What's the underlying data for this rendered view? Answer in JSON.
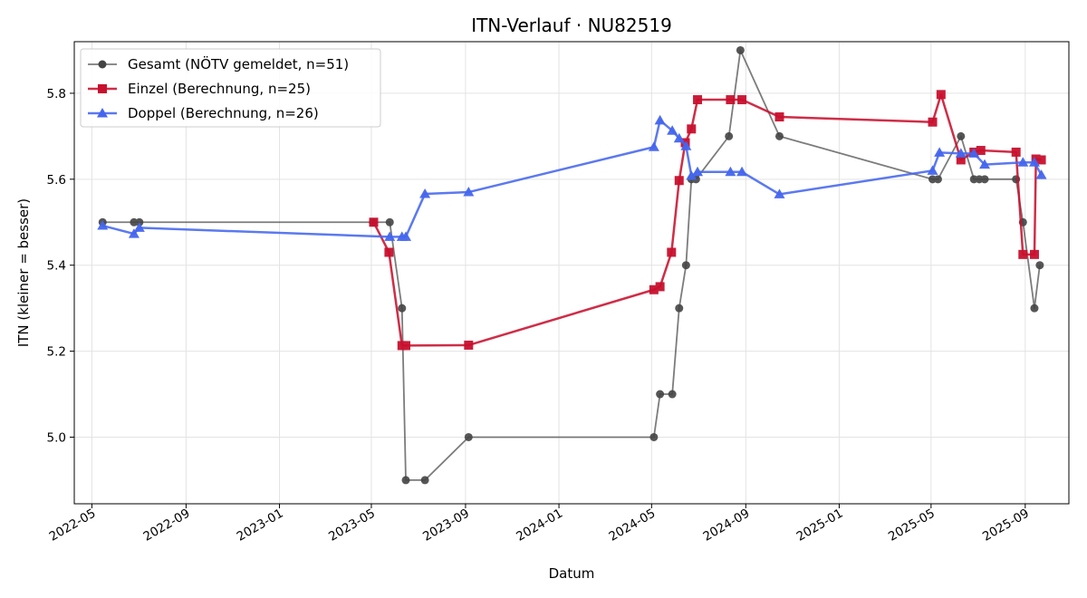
{
  "chart_data": {
    "type": "line",
    "title": "ITN-Verlauf · NU82519",
    "xlabel": "Datum",
    "ylabel": "ITN  (kleiner = besser)",
    "x_type": "date",
    "xlim": [
      "2022-04-08",
      "2025-10-28"
    ],
    "ylim": [
      4.845,
      5.92
    ],
    "x_ticks": [
      "2022-05-01",
      "2022-09-01",
      "2023-01-01",
      "2023-05-01",
      "2023-09-01",
      "2024-01-01",
      "2024-05-01",
      "2024-09-01",
      "2025-01-01",
      "2025-05-01",
      "2025-09-01"
    ],
    "x_tick_labels": [
      "2022-05",
      "2022-09",
      "2023-01",
      "2023-05",
      "2023-09",
      "2024-01",
      "2024-05",
      "2024-09",
      "2025-01",
      "2025-05",
      "2025-09"
    ],
    "y_ticks": [
      5.0,
      5.2,
      5.4,
      5.6,
      5.8
    ],
    "y_tick_labels": [
      "5.0",
      "5.2",
      "5.4",
      "5.6",
      "5.8"
    ],
    "grid": true,
    "legend_position": "top-left",
    "series": [
      {
        "name": "Gesamt (NÖTV gemeldet, n=51)",
        "color": "#444444",
        "marker": "circle",
        "points": [
          [
            "2022-05-15",
            5.5
          ],
          [
            "2022-06-25",
            5.5
          ],
          [
            "2022-07-02",
            5.5
          ],
          [
            "2023-05-03",
            5.5
          ],
          [
            "2023-05-25",
            5.5
          ],
          [
            "2023-06-10",
            5.3
          ],
          [
            "2023-06-15",
            4.9
          ],
          [
            "2023-07-10",
            4.9
          ],
          [
            "2023-09-05",
            5.0
          ],
          [
            "2024-05-04",
            5.0
          ],
          [
            "2024-05-12",
            5.1
          ],
          [
            "2024-05-28",
            5.1
          ],
          [
            "2024-06-06",
            5.3
          ],
          [
            "2024-06-15",
            5.4
          ],
          [
            "2024-06-22",
            5.6
          ],
          [
            "2024-06-28",
            5.6
          ],
          [
            "2024-08-10",
            5.7
          ],
          [
            "2024-08-25",
            5.9
          ],
          [
            "2024-10-15",
            5.7
          ],
          [
            "2025-05-03",
            5.6
          ],
          [
            "2025-05-10",
            5.6
          ],
          [
            "2025-06-09",
            5.7
          ],
          [
            "2025-06-26",
            5.6
          ],
          [
            "2025-07-03",
            5.6
          ],
          [
            "2025-07-10",
            5.6
          ],
          [
            "2025-08-20",
            5.6
          ],
          [
            "2025-08-29",
            5.5
          ],
          [
            "2025-09-13",
            5.3
          ],
          [
            "2025-09-20",
            5.4
          ]
        ]
      },
      {
        "name": "Einzel (Berechnung, n=25)",
        "color": "#c8102e",
        "marker": "square",
        "points": [
          [
            "2023-05-04",
            5.5
          ],
          [
            "2023-05-24",
            5.43
          ],
          [
            "2023-06-10",
            5.213
          ],
          [
            "2023-06-15",
            5.213
          ],
          [
            "2023-09-05",
            5.214
          ],
          [
            "2024-05-04",
            5.343
          ],
          [
            "2024-05-12",
            5.35
          ],
          [
            "2024-05-27",
            5.43
          ],
          [
            "2024-06-06",
            5.597
          ],
          [
            "2024-06-14",
            5.685
          ],
          [
            "2024-06-22",
            5.717
          ],
          [
            "2024-06-30",
            5.785
          ],
          [
            "2024-08-12",
            5.785
          ],
          [
            "2024-08-27",
            5.785
          ],
          [
            "2024-10-15",
            5.745
          ],
          [
            "2025-05-03",
            5.733
          ],
          [
            "2025-05-14",
            5.797
          ],
          [
            "2025-06-09",
            5.645
          ],
          [
            "2025-06-26",
            5.663
          ],
          [
            "2025-07-05",
            5.667
          ],
          [
            "2025-08-20",
            5.663
          ],
          [
            "2025-08-29",
            5.425
          ],
          [
            "2025-09-13",
            5.425
          ],
          [
            "2025-09-15",
            5.647
          ],
          [
            "2025-09-22",
            5.645
          ]
        ]
      },
      {
        "name": "Doppel (Berechnung, n=26)",
        "color": "#4466ee",
        "marker": "triangle",
        "points": [
          [
            "2022-05-15",
            5.492
          ],
          [
            "2022-06-25",
            5.473
          ],
          [
            "2022-07-02",
            5.487
          ],
          [
            "2023-05-25",
            5.466
          ],
          [
            "2023-06-10",
            5.466
          ],
          [
            "2023-06-15",
            5.466
          ],
          [
            "2023-07-10",
            5.566
          ],
          [
            "2023-09-05",
            5.57
          ],
          [
            "2024-05-04",
            5.675
          ],
          [
            "2024-05-12",
            5.737
          ],
          [
            "2024-05-28",
            5.713
          ],
          [
            "2024-06-06",
            5.695
          ],
          [
            "2024-06-15",
            5.677
          ],
          [
            "2024-06-22",
            5.608
          ],
          [
            "2024-06-30",
            5.617
          ],
          [
            "2024-08-12",
            5.617
          ],
          [
            "2024-08-27",
            5.617
          ],
          [
            "2024-10-15",
            5.565
          ],
          [
            "2025-05-03",
            5.62
          ],
          [
            "2025-05-12",
            5.662
          ],
          [
            "2025-06-09",
            5.66
          ],
          [
            "2025-06-26",
            5.66
          ],
          [
            "2025-07-10",
            5.634
          ],
          [
            "2025-08-29",
            5.639
          ],
          [
            "2025-09-13",
            5.639
          ],
          [
            "2025-09-22",
            5.61
          ]
        ]
      }
    ]
  }
}
